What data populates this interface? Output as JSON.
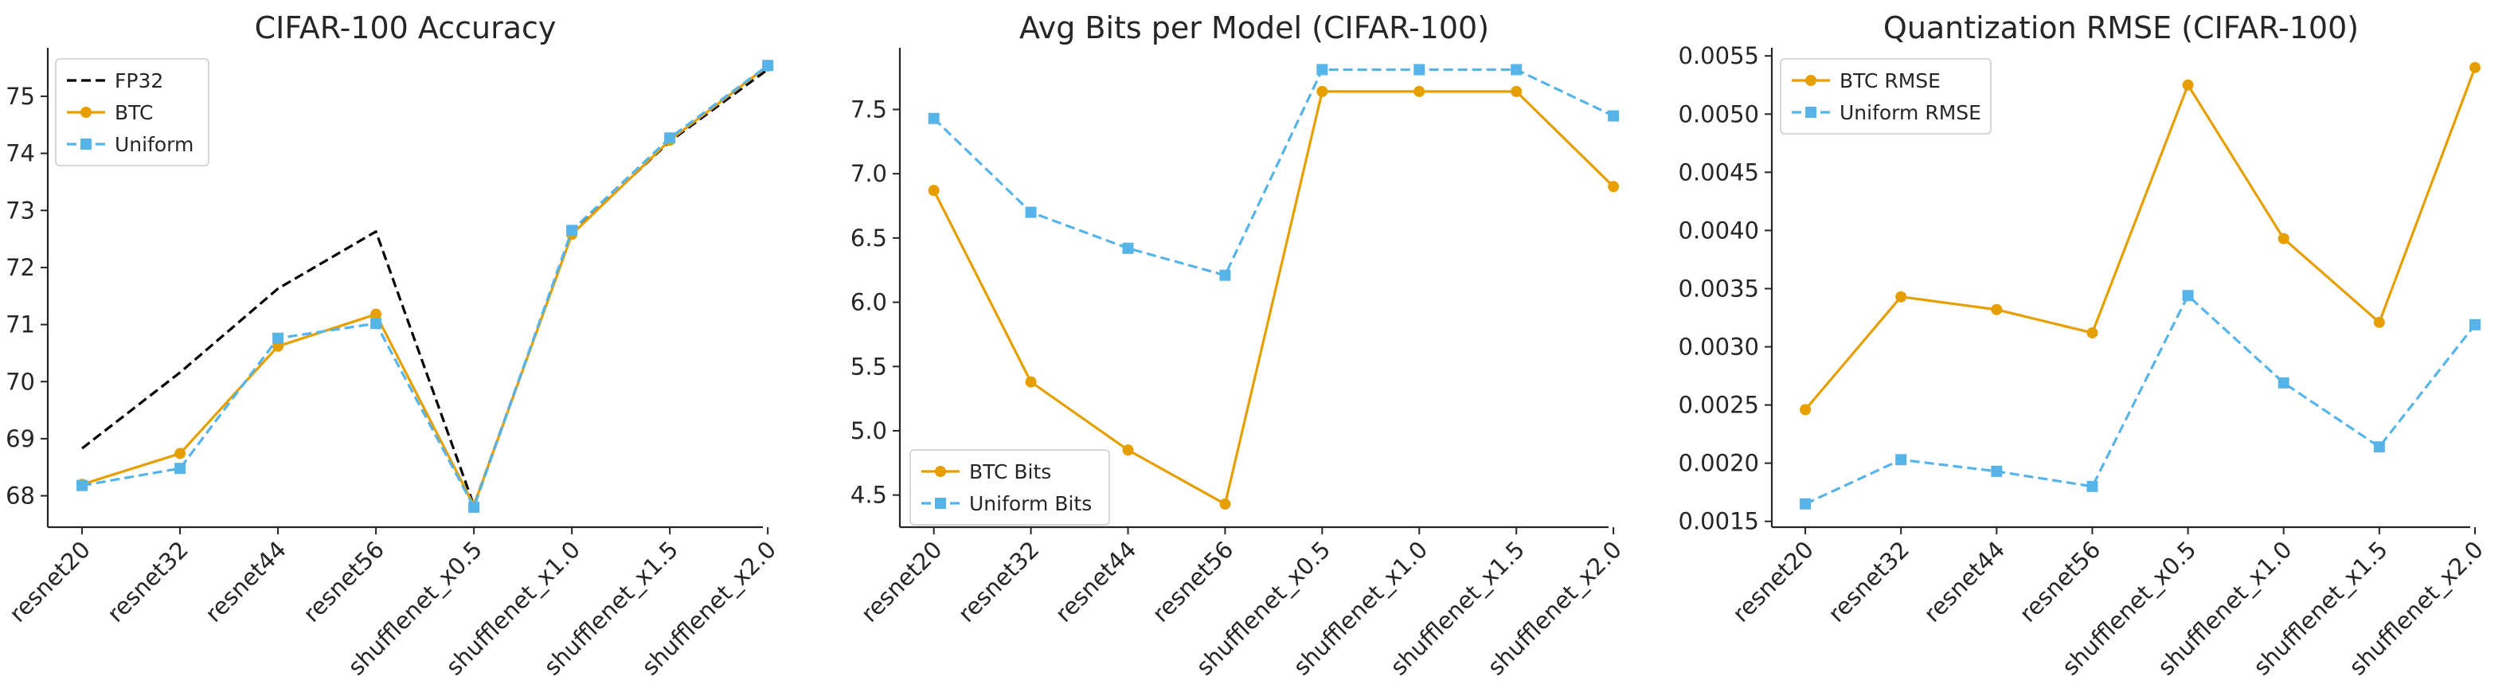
{
  "chart_data": [
    {
      "type": "line",
      "title": "CIFAR-100 Accuracy",
      "xlabel": "",
      "ylabel": "",
      "categories": [
        "resnet20",
        "resnet32",
        "resnet44",
        "resnet56",
        "shufflenet_x0.5",
        "shufflenet_x1.0",
        "shufflenet_x1.5",
        "shufflenet_x2.0"
      ],
      "ylim": [
        67.45,
        75.85
      ],
      "yticks": [
        68,
        69,
        70,
        71,
        72,
        73,
        74,
        75
      ],
      "ytick_labels": [
        "68",
        "69",
        "70",
        "71",
        "72",
        "73",
        "74",
        "75"
      ],
      "legend": "top-left",
      "series": [
        {
          "name": "FP32",
          "color": "#000000",
          "style": "dashed",
          "marker": "none",
          "values": [
            68.83,
            70.16,
            71.63,
            72.63,
            67.83,
            72.61,
            74.21,
            75.47
          ]
        },
        {
          "name": "BTC",
          "color": "#E69F00",
          "style": "solid",
          "marker": "circle",
          "values": [
            68.2,
            68.74,
            70.62,
            71.18,
            67.83,
            72.58,
            74.23,
            75.53
          ]
        },
        {
          "name": "Uniform",
          "color": "#56B4E9",
          "style": "dashed",
          "marker": "square",
          "values": [
            68.18,
            68.48,
            70.76,
            71.02,
            67.8,
            72.65,
            74.27,
            75.54
          ]
        }
      ]
    },
    {
      "type": "line",
      "title": "Avg Bits per Model (CIFAR-100)",
      "xlabel": "",
      "ylabel": "",
      "categories": [
        "resnet20",
        "resnet32",
        "resnet44",
        "resnet56",
        "shufflenet_x0.5",
        "shufflenet_x1.0",
        "shufflenet_x1.5",
        "shufflenet_x2.0"
      ],
      "ylim": [
        4.25,
        7.98
      ],
      "yticks": [
        4.5,
        5.0,
        5.5,
        6.0,
        6.5,
        7.0,
        7.5
      ],
      "ytick_labels": [
        "4.5",
        "5.0",
        "5.5",
        "6.0",
        "6.5",
        "7.0",
        "7.5"
      ],
      "legend": "bottom-left",
      "series": [
        {
          "name": "BTC Bits",
          "color": "#E69F00",
          "style": "solid",
          "marker": "circle",
          "values": [
            6.87,
            5.38,
            4.85,
            4.43,
            7.64,
            7.64,
            7.64,
            6.9
          ]
        },
        {
          "name": "Uniform Bits",
          "color": "#56B4E9",
          "style": "dashed",
          "marker": "square",
          "values": [
            7.43,
            6.7,
            6.42,
            6.21,
            7.81,
            7.81,
            7.81,
            7.45
          ]
        }
      ]
    },
    {
      "type": "line",
      "title": "Quantization RMSE (CIFAR-100)",
      "xlabel": "",
      "ylabel": "",
      "categories": [
        "resnet20",
        "resnet32",
        "resnet44",
        "resnet56",
        "shufflenet_x0.5",
        "shufflenet_x1.0",
        "shufflenet_x1.5",
        "shufflenet_x2.0"
      ],
      "ylim": [
        0.00145,
        0.00557
      ],
      "yticks": [
        0.0015,
        0.002,
        0.0025,
        0.003,
        0.0035,
        0.004,
        0.0045,
        0.005,
        0.0055
      ],
      "ytick_labels": [
        "0.0015",
        "0.0020",
        "0.0025",
        "0.0030",
        "0.0035",
        "0.0040",
        "0.0045",
        "0.0050",
        "0.0055"
      ],
      "legend": "top-left",
      "series": [
        {
          "name": "BTC RMSE",
          "color": "#E69F00",
          "style": "solid",
          "marker": "circle",
          "values": [
            0.00246,
            0.00343,
            0.00332,
            0.00312,
            0.00525,
            0.00393,
            0.00321,
            0.0054
          ]
        },
        {
          "name": "Uniform RMSE",
          "color": "#56B4E9",
          "style": "dashed",
          "marker": "square",
          "values": [
            0.00165,
            0.00203,
            0.00193,
            0.0018,
            0.00344,
            0.00269,
            0.00214,
            0.00319
          ]
        }
      ]
    }
  ]
}
